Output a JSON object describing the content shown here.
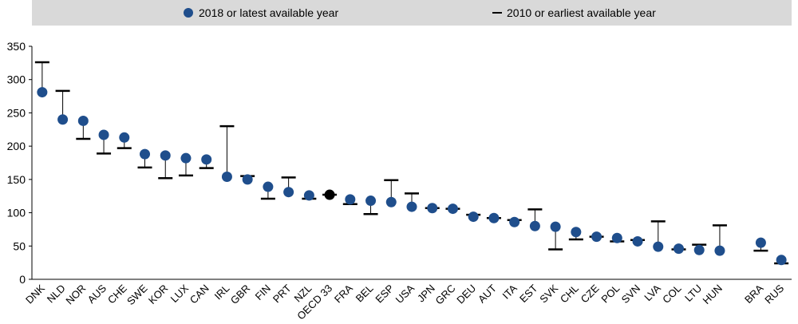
{
  "legend": {
    "latest_label": "2018 or latest available year",
    "earliest_label": "2010 or earliest available year"
  },
  "colors": {
    "latest": "#1f4e8c",
    "oecd": "#000000",
    "earliest": "#000000",
    "legend_bg": "#d9d9d9"
  },
  "chart_data": {
    "type": "scatter",
    "title": "",
    "xlabel": "",
    "ylabel": "",
    "ylim": [
      0,
      350
    ],
    "yticks": [
      0,
      50,
      100,
      150,
      200,
      250,
      300,
      350
    ],
    "grid": false,
    "legend_position": "top",
    "categories": [
      "DNK",
      "NLD",
      "NOR",
      "AUS",
      "CHE",
      "SWE",
      "KOR",
      "LUX",
      "CAN",
      "IRL",
      "GBR",
      "FIN",
      "PRT",
      "NZL",
      "OECD 33",
      "FRA",
      "BEL",
      "ESP",
      "USA",
      "JPN",
      "GRC",
      "DEU",
      "AUT",
      "ITA",
      "EST",
      "SVK",
      "CHL",
      "CZE",
      "POL",
      "SVN",
      "LVA",
      "COL",
      "LTU",
      "HUN",
      "BRA",
      "RUS"
    ],
    "gap_after": [
      "HUN"
    ],
    "highlight": [
      "OECD 33"
    ],
    "series": [
      {
        "name": "2018 or latest available year",
        "marker": "dot",
        "values": [
          281,
          240,
          238,
          217,
          213,
          188,
          186,
          182,
          180,
          154,
          150,
          139,
          131,
          126,
          127,
          120,
          118,
          116,
          109,
          107,
          106,
          94,
          92,
          86,
          80,
          79,
          71,
          64,
          62,
          57,
          49,
          46,
          44,
          43,
          55,
          29
        ]
      },
      {
        "name": "2010 or earliest available year",
        "marker": "dash",
        "values": [
          326,
          283,
          211,
          189,
          197,
          168,
          152,
          156,
          167,
          230,
          155,
          121,
          153,
          121,
          127,
          113,
          98,
          149,
          129,
          107,
          106,
          97,
          92,
          89,
          105,
          45,
          60,
          64,
          57,
          59,
          87,
          45,
          52,
          81,
          43,
          24
        ]
      }
    ]
  }
}
